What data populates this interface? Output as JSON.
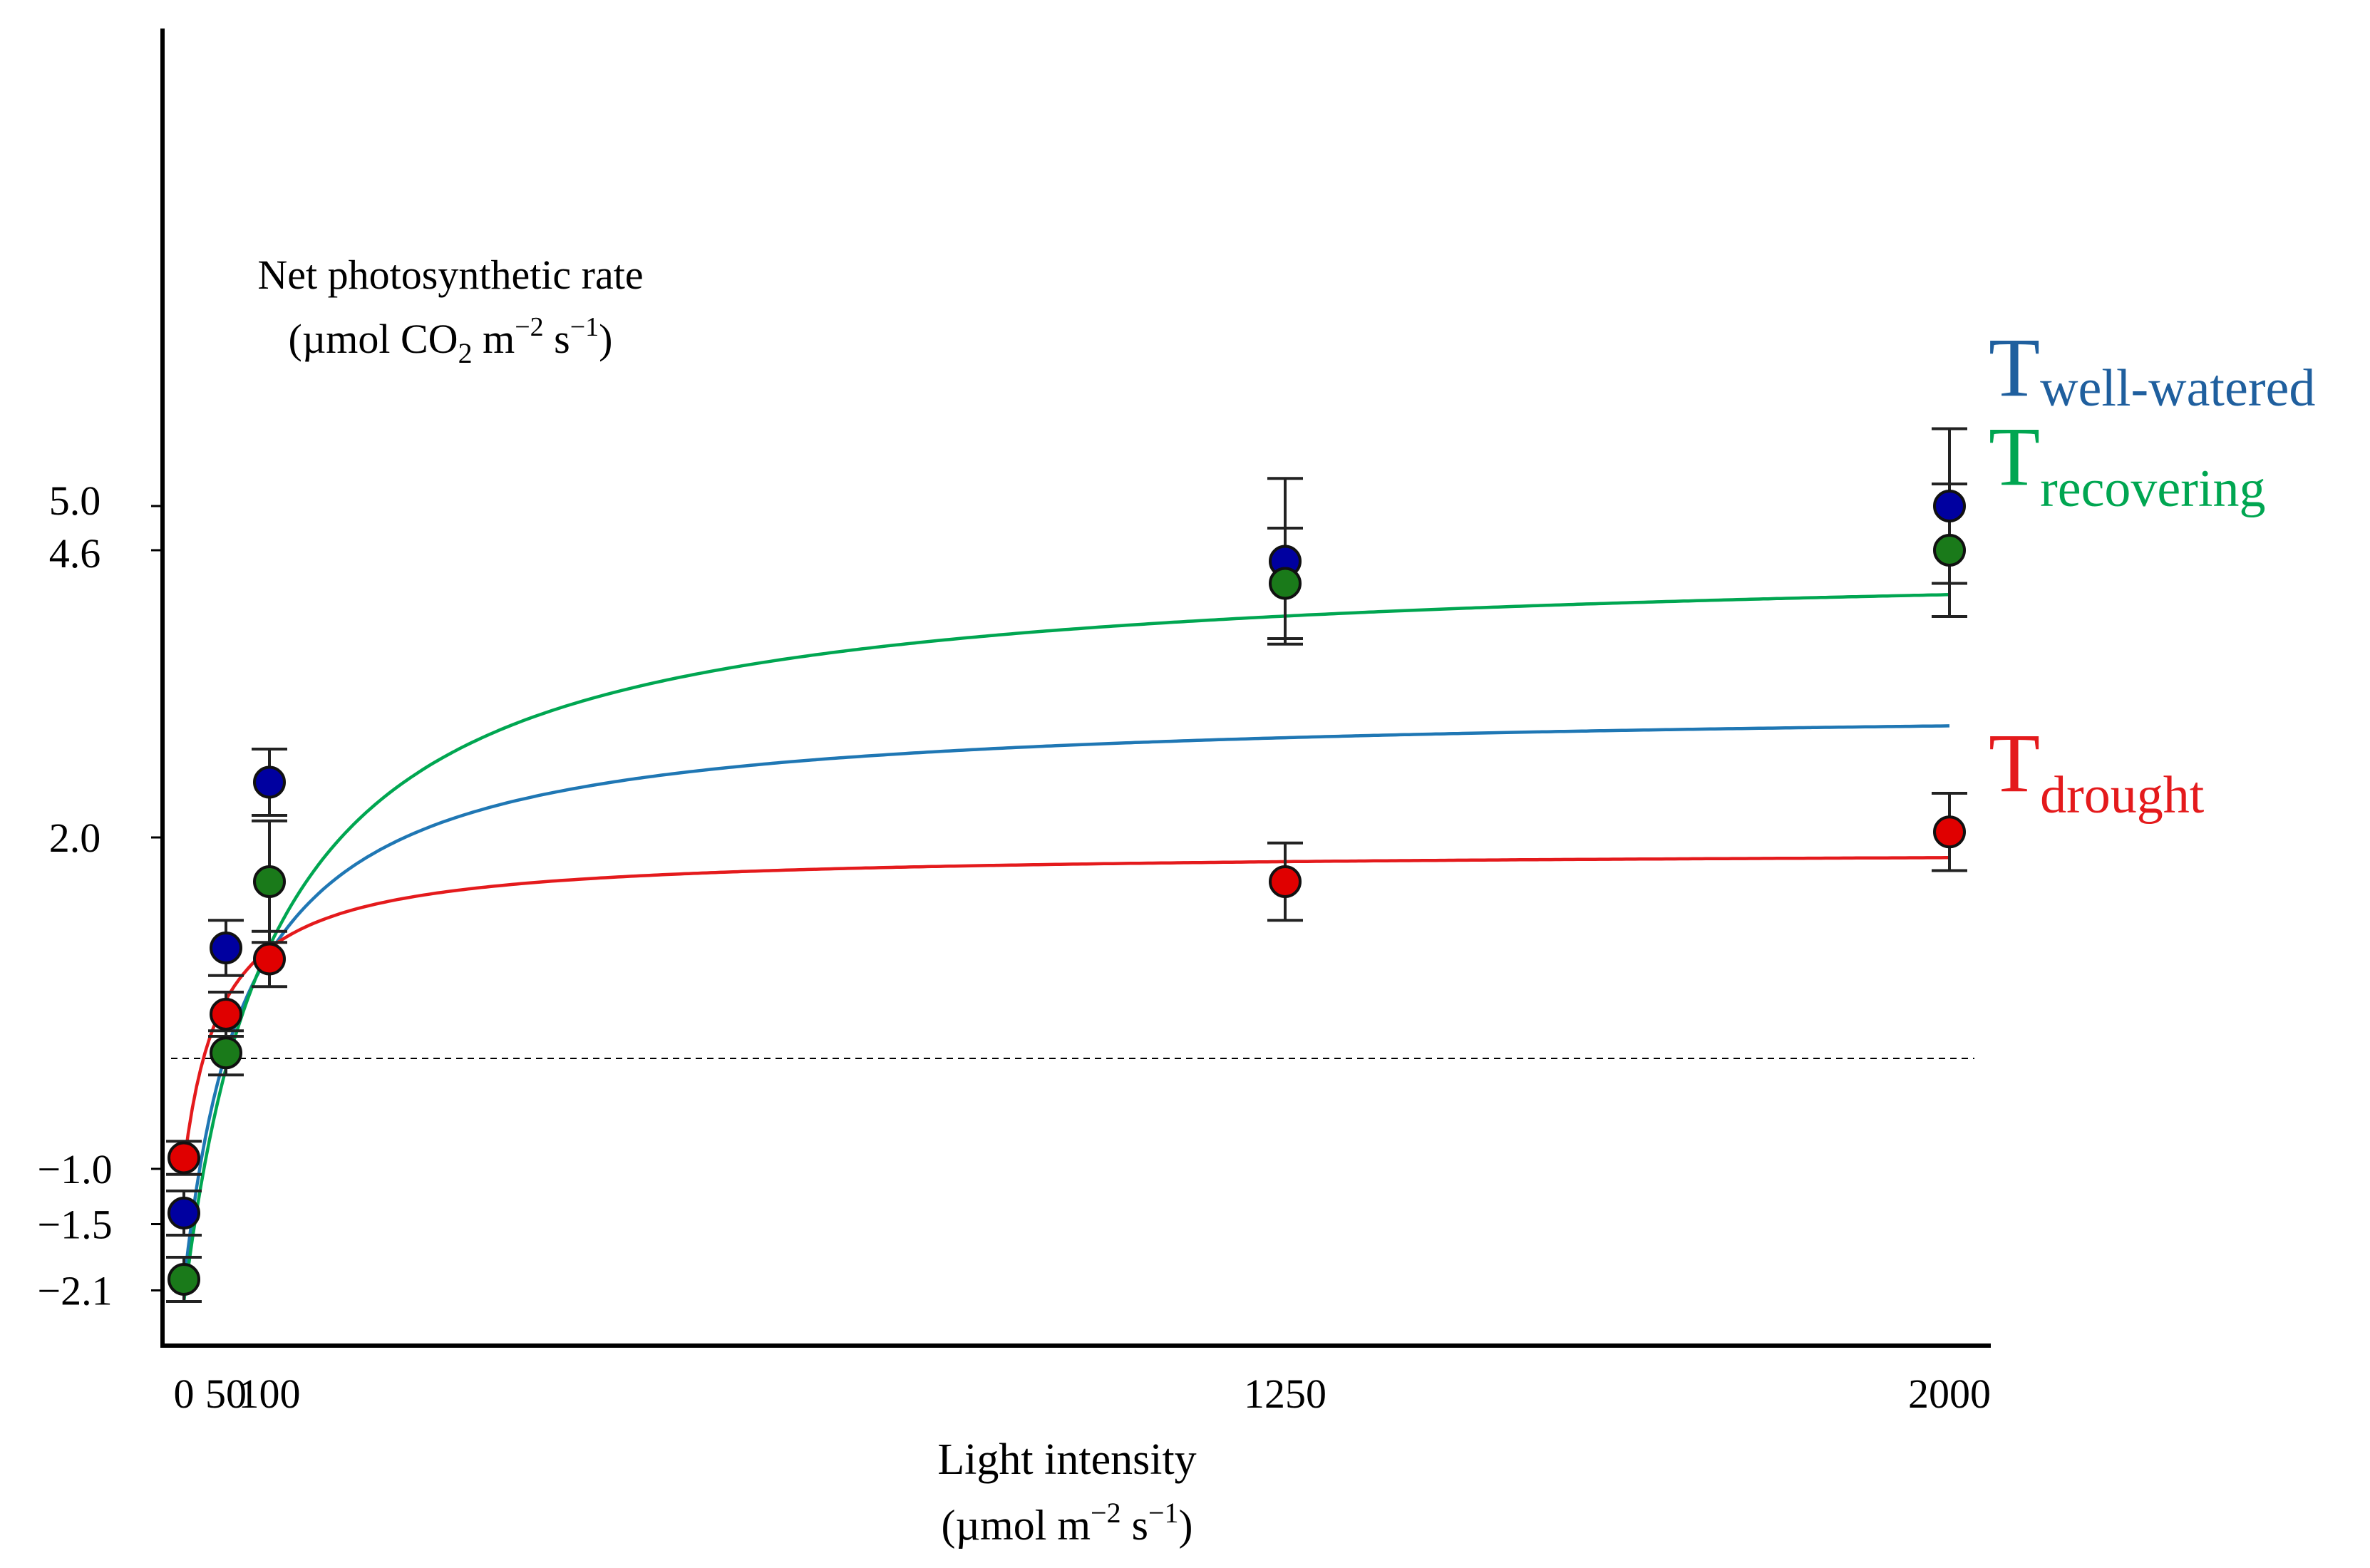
{
  "chart_data": {
    "type": "scatter",
    "ylabel_line1": "Net photosynthetic rate",
    "ylabel_line2_prefix": "(µmol CO",
    "ylabel_line2_sub": "2",
    "ylabel_line2_mid": " m",
    "ylabel_line2_exp1": "−2",
    "ylabel_line2_mid2": " s",
    "ylabel_line2_exp2": "−1",
    "ylabel_line2_suffix": ")",
    "xlabel_line1": "Light intensity",
    "xlabel_line2_prefix": "(µmol m",
    "xlabel_line2_exp1": "−2",
    "xlabel_line2_mid": " s",
    "xlabel_line2_exp2": "−1",
    "xlabel_line2_suffix": ")",
    "xlim": [
      0,
      2000
    ],
    "ylim": [
      -2.6,
      9.0
    ],
    "x_ticks": [
      0,
      50,
      100,
      1250,
      2000
    ],
    "x_tick_labels": [
      "0",
      "50",
      "100",
      "1250",
      "2000"
    ],
    "y_ticks": [
      5.0,
      4.6,
      2.0,
      -1.0,
      -1.5,
      -2.1
    ],
    "y_tick_labels": [
      "5.0",
      "4.6",
      "2.0",
      "−1.0",
      "−1.5",
      "−2.1"
    ],
    "reference_line_y": 0,
    "series": [
      {
        "name": "T",
        "subscript": "well-watered",
        "color": "#1f5f9e",
        "line_color": "#1f77b4",
        "marker_color": "#0000a0",
        "x": [
          0,
          50,
          100,
          1250,
          2000
        ],
        "y": [
          -1.4,
          1.0,
          2.5,
          4.5,
          5.0
        ],
        "err": [
          0.2,
          0.25,
          0.3,
          0.75,
          0.7
        ],
        "fit": {
          "pmax": 5.25,
          "rd": 2.05,
          "k": 75
        }
      },
      {
        "name": "T",
        "subscript": "recovering",
        "color": "#00a651",
        "line_color": "#00a651",
        "marker_color": "#1a7a1a",
        "x": [
          0,
          50,
          100,
          1250,
          2000
        ],
        "y": [
          -2.0,
          0.05,
          1.6,
          4.3,
          4.6
        ],
        "err": [
          0.2,
          0.2,
          0.55,
          0.5,
          0.6
        ],
        "fit": {
          "pmax": 6.75,
          "rd": 2.2,
          "k": 110
        }
      },
      {
        "name": "T",
        "subscript": "drought",
        "color": "#e41a1c",
        "line_color": "#e41a1c",
        "marker_color": "#e00000",
        "x": [
          0,
          50,
          100,
          1250,
          2000
        ],
        "y": [
          -0.9,
          0.4,
          0.9,
          1.6,
          2.05
        ],
        "err": [
          0.15,
          0.2,
          0.25,
          0.35,
          0.35
        ],
        "fit": {
          "pmax": 2.85,
          "rd": 0.97,
          "k": 45
        }
      }
    ]
  }
}
